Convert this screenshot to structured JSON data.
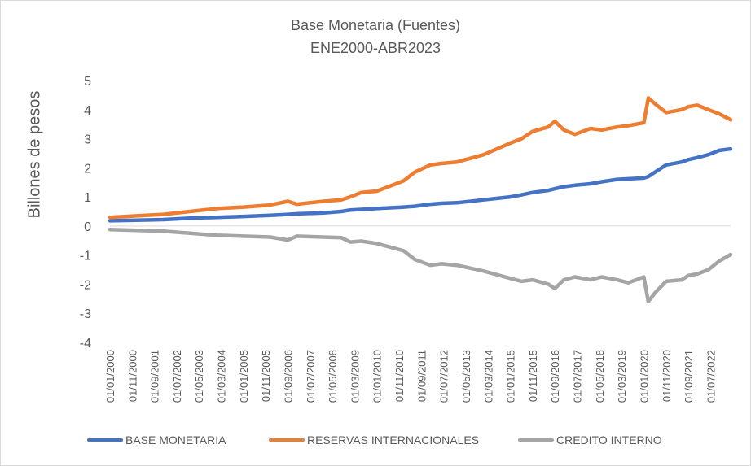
{
  "chart_data": {
    "type": "line",
    "title": "Base Monetaria (Fuentes)",
    "subtitle": "ENE2000-ABR2023",
    "ylabel": "Billones de pesos",
    "xlabel": "",
    "ylim": [
      -4,
      5
    ],
    "yticks": [
      -4,
      -3,
      -2,
      -1,
      0,
      1,
      2,
      3,
      4,
      5
    ],
    "grid": false,
    "legend_position": "bottom",
    "x_start": "2000-01",
    "x_end": "2023-04",
    "x_ticks": [
      "01/01/2000",
      "01/11/2000",
      "01/09/2001",
      "01/07/2002",
      "01/05/2003",
      "01/03/2004",
      "01/01/2005",
      "01/11/2005",
      "01/09/2006",
      "01/07/2007",
      "01/05/2008",
      "01/03/2009",
      "01/01/2010",
      "01/11/2010",
      "01/09/2011",
      "01/07/2012",
      "01/05/2013",
      "01/03/2014",
      "01/01/2015",
      "01/11/2015",
      "01/09/2016",
      "01/07/2017",
      "01/05/2018",
      "01/03/2019",
      "01/01/2020",
      "01/11/2020",
      "01/09/2021",
      "01/07/2022"
    ],
    "x": [
      "2000-01",
      "2001-01",
      "2002-01",
      "2003-01",
      "2004-01",
      "2005-01",
      "2006-01",
      "2006-09",
      "2007-01",
      "2008-01",
      "2008-09",
      "2009-01",
      "2009-06",
      "2010-01",
      "2011-01",
      "2011-06",
      "2012-01",
      "2012-06",
      "2013-01",
      "2014-01",
      "2015-01",
      "2015-06",
      "2015-11",
      "2016-06",
      "2016-09",
      "2017-01",
      "2017-06",
      "2018-01",
      "2018-06",
      "2019-01",
      "2019-06",
      "2020-01",
      "2020-03",
      "2020-06",
      "2020-11",
      "2021-06",
      "2021-09",
      "2022-01",
      "2022-06",
      "2022-11",
      "2023-04"
    ],
    "series": [
      {
        "name": "BASE MONETARIA",
        "color": "#4472c4",
        "values": [
          0.18,
          0.2,
          0.22,
          0.27,
          0.3,
          0.33,
          0.37,
          0.4,
          0.42,
          0.45,
          0.5,
          0.55,
          0.57,
          0.6,
          0.65,
          0.68,
          0.75,
          0.78,
          0.8,
          0.9,
          1.0,
          1.07,
          1.15,
          1.22,
          1.28,
          1.35,
          1.4,
          1.45,
          1.52,
          1.6,
          1.62,
          1.65,
          1.7,
          1.85,
          2.1,
          2.2,
          2.28,
          2.35,
          2.45,
          2.6,
          2.65
        ]
      },
      {
        "name": "RESERVAS INTERNACIONALES",
        "color": "#ed7d31",
        "values": [
          0.3,
          0.35,
          0.4,
          0.5,
          0.6,
          0.65,
          0.72,
          0.85,
          0.75,
          0.85,
          0.9,
          1.0,
          1.15,
          1.2,
          1.55,
          1.85,
          2.1,
          2.15,
          2.2,
          2.45,
          2.85,
          3.0,
          3.25,
          3.4,
          3.6,
          3.3,
          3.15,
          3.35,
          3.3,
          3.4,
          3.45,
          3.55,
          4.4,
          4.2,
          3.9,
          4.0,
          4.1,
          4.15,
          4.0,
          3.85,
          3.65
        ]
      },
      {
        "name": "CREDITO INTERNO",
        "color": "#a5a5a5",
        "values": [
          -0.12,
          -0.15,
          -0.18,
          -0.25,
          -0.32,
          -0.35,
          -0.38,
          -0.48,
          -0.35,
          -0.38,
          -0.4,
          -0.55,
          -0.52,
          -0.6,
          -0.85,
          -1.15,
          -1.35,
          -1.3,
          -1.35,
          -1.55,
          -1.8,
          -1.9,
          -1.85,
          -2.0,
          -2.15,
          -1.85,
          -1.75,
          -1.85,
          -1.75,
          -1.85,
          -1.95,
          -1.75,
          -2.6,
          -2.3,
          -1.9,
          -1.85,
          -1.7,
          -1.65,
          -1.5,
          -1.2,
          -0.98
        ]
      }
    ]
  }
}
